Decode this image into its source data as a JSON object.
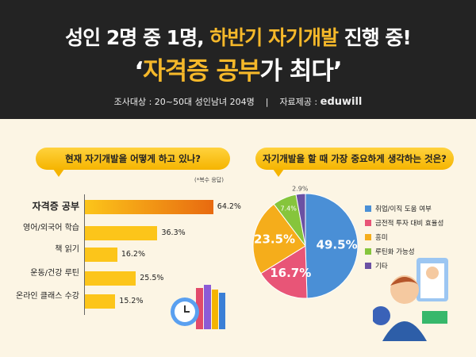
{
  "header": {
    "line1_a": "성인 2명 중 1명, ",
    "line1_b": "하반기 자기개발",
    "line1_c": " 진행 중!",
    "line2_a": "‘",
    "line2_b": "자격증 공부",
    "line2_c": "가 최다’",
    "survey": "조사대상 : 20~50대 성인남녀 204명",
    "separator": "|",
    "source_label": "자료제공 :",
    "source_logo": "eduwill"
  },
  "chart_data": [
    {
      "type": "bar",
      "orientation": "horizontal",
      "title": "현재 자기개발을 어떻게 하고 있나?",
      "note": "(*복수 응답)",
      "categories": [
        "자격증 공부",
        "영어/외국어 학습",
        "책 읽기",
        "운동/건강 루틴",
        "온라인 클래스 수강"
      ],
      "values": [
        64.2,
        36.3,
        16.2,
        25.5,
        15.2
      ],
      "labels": [
        "64.2%",
        "36.3%",
        "16.2%",
        "25.5%",
        "15.2%"
      ],
      "highlight_color": "#e86a10",
      "bar_color": "#fcc51a"
    },
    {
      "type": "pie",
      "title": "자기개발을 할 때 가장 중요하게 생각하는 것은?",
      "categories": [
        "취업/이직 도움 여부",
        "금전적 투자 대비 효율성",
        "흥미",
        "루틴화 가능성",
        "기타"
      ],
      "values": [
        49.5,
        16.7,
        23.5,
        7.4,
        2.9
      ],
      "labels": [
        "49.5%",
        "16.7%",
        "23.5%",
        "7.4%",
        "2.9%"
      ],
      "colors": [
        "#4a8fd6",
        "#e85577",
        "#f5ad1b",
        "#86c53c",
        "#6b51a3"
      ]
    }
  ]
}
